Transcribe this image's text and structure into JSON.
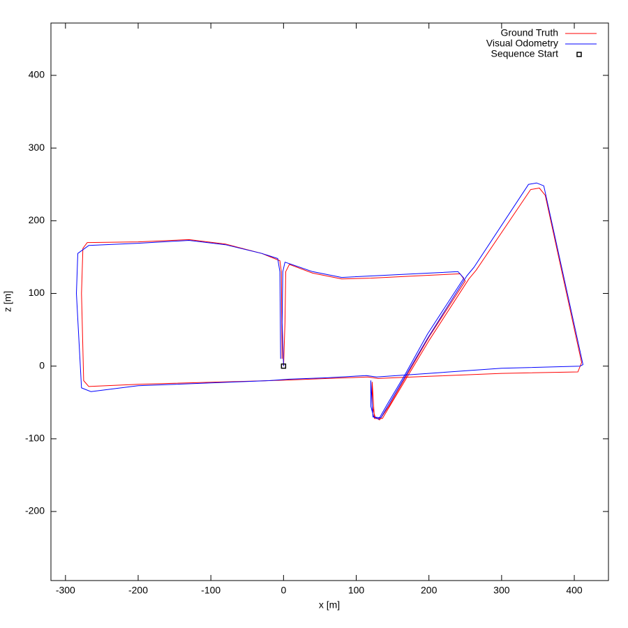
{
  "chart_data": {
    "type": "line",
    "xlabel": "x [m]",
    "ylabel": "z [m]",
    "xlim": [
      -320,
      447
    ],
    "ylim": [
      -295,
      472
    ],
    "xticks": [
      -300,
      -200,
      -100,
      0,
      100,
      200,
      300,
      400
    ],
    "yticks": [
      -200,
      -100,
      0,
      100,
      200,
      300,
      400
    ],
    "legend": "top-right",
    "series": [
      {
        "name": "Ground Truth",
        "color": "#ff0000",
        "x": [
          0,
          2,
          3,
          8,
          40,
          80,
          120,
          200,
          243,
          250,
          200,
          170,
          145,
          132,
          126,
          122,
          122,
          125,
          136,
          200,
          255,
          265,
          340,
          352,
          360,
          410,
          405,
          300,
          200,
          130,
          116,
          60,
          10,
          -20,
          -200,
          -268,
          -275,
          -278,
          -276,
          -270,
          -200,
          -130,
          -80,
          -30,
          -5,
          -3,
          -2
        ],
        "values": [
          0,
          60,
          130,
          140,
          128,
          120,
          121,
          125,
          127,
          117,
          40,
          -12,
          -55,
          -74,
          -70,
          -55,
          -22,
          -72,
          -72,
          35,
          120,
          132,
          243,
          245,
          235,
          5,
          -8,
          -10,
          -14,
          -17,
          -15,
          -17,
          -19,
          -20,
          -25,
          -28,
          -20,
          100,
          162,
          170,
          171,
          174,
          168,
          155,
          145,
          130,
          10
        ]
      },
      {
        "name": "Visual Odometry",
        "color": "#0000ff",
        "x": [
          0,
          -2,
          -1,
          2,
          40,
          80,
          120,
          200,
          240,
          248,
          198,
          168,
          143,
          131,
          124,
          120,
          120,
          123,
          134,
          198,
          252,
          262,
          337,
          348,
          358,
          412,
          408,
          300,
          200,
          128,
          114,
          60,
          8,
          -20,
          -200,
          -265,
          -278,
          -285,
          -283,
          -268,
          -200,
          -130,
          -80,
          -30,
          -8,
          -5,
          -4
        ],
        "values": [
          0,
          60,
          130,
          143,
          130,
          122,
          124,
          128,
          130,
          121,
          44,
          -10,
          -52,
          -73,
          -70,
          -55,
          -20,
          -70,
          -71,
          38,
          124,
          136,
          250,
          252,
          248,
          2,
          0,
          -3,
          -10,
          -15,
          -13,
          -16,
          -18,
          -20,
          -27,
          -35,
          -30,
          100,
          155,
          166,
          169,
          173,
          167,
          155,
          148,
          130,
          10
        ]
      },
      {
        "name": "Sequence Start",
        "color": "#000000",
        "marker": "square",
        "x": [
          0
        ],
        "values": [
          0
        ]
      }
    ]
  }
}
